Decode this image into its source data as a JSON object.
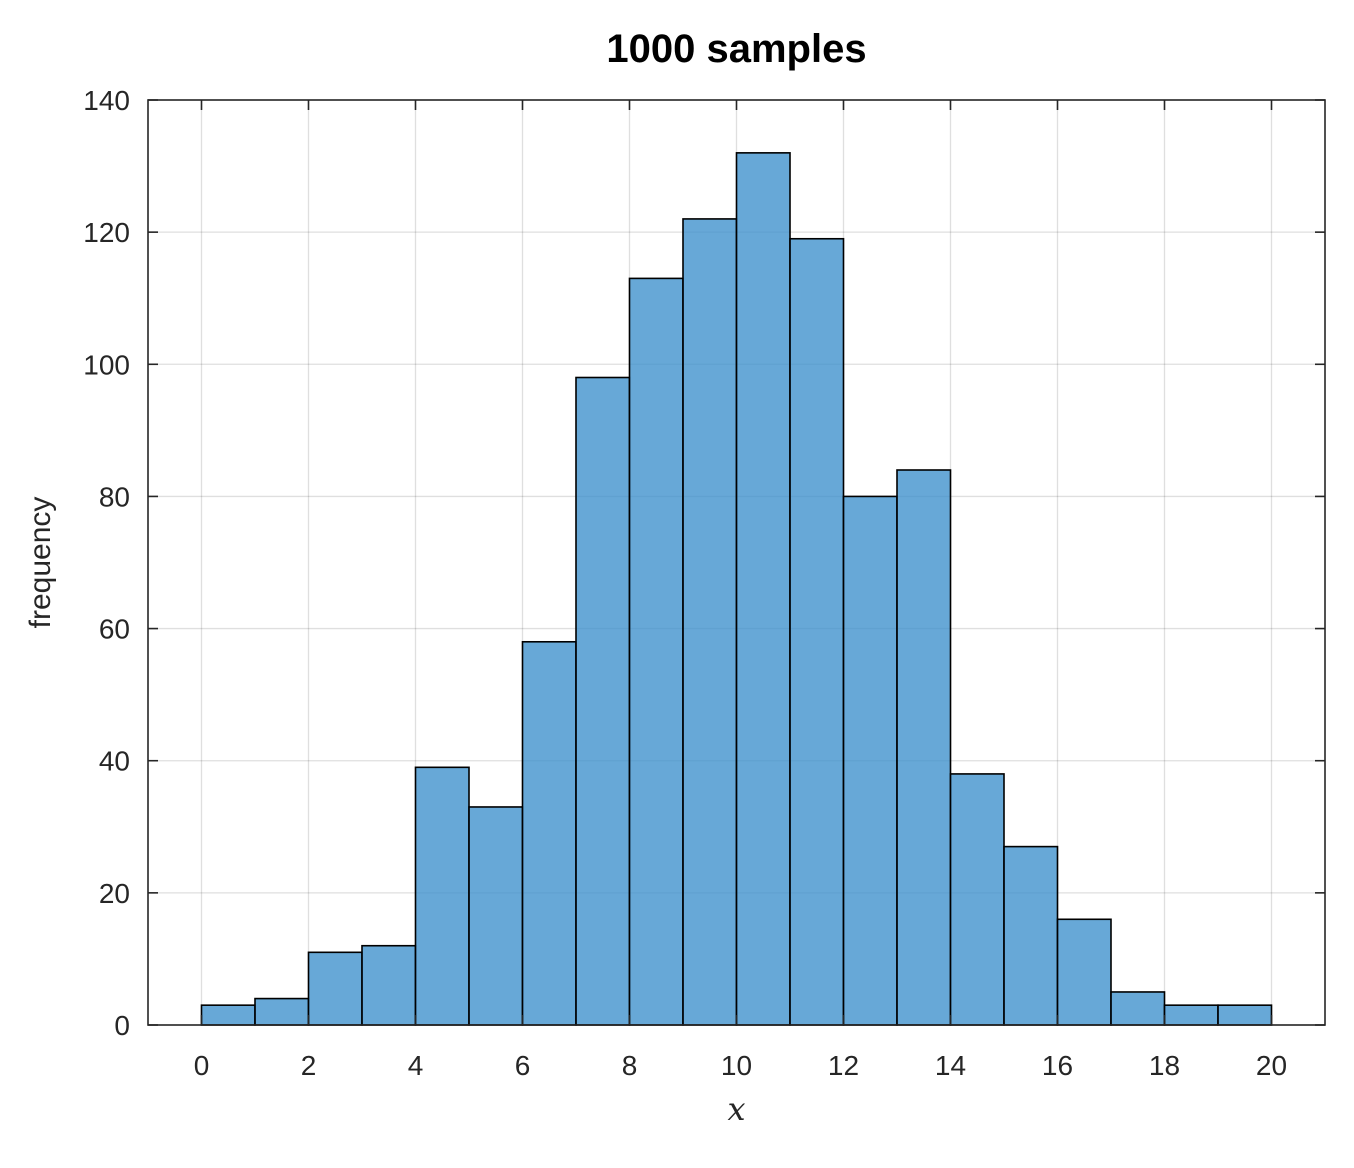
{
  "chart_data": {
    "type": "bar",
    "subtype": "histogram",
    "title": "1000 samples",
    "xlabel": "x",
    "ylabel": "frequency",
    "xlim": [
      -1,
      21
    ],
    "ylim": [
      0,
      140
    ],
    "xticks": [
      0,
      2,
      4,
      6,
      8,
      10,
      12,
      14,
      16,
      18,
      20
    ],
    "yticks": [
      0,
      20,
      40,
      60,
      80,
      100,
      120,
      140
    ],
    "bin_edges": [
      0,
      1,
      2,
      3,
      4,
      5,
      6,
      7,
      8,
      9,
      10,
      11,
      12,
      13,
      14,
      15,
      16,
      17,
      18,
      19,
      20
    ],
    "values": [
      3,
      4,
      11,
      12,
      39,
      33,
      58,
      98,
      113,
      122,
      132,
      119,
      80,
      84,
      38,
      27,
      16,
      5,
      3,
      3
    ],
    "grid": true,
    "legend": "none",
    "bar_color": "#3c8fcc",
    "bar_fill_opacity": 0.78,
    "bar_edge_color": "#000000"
  }
}
